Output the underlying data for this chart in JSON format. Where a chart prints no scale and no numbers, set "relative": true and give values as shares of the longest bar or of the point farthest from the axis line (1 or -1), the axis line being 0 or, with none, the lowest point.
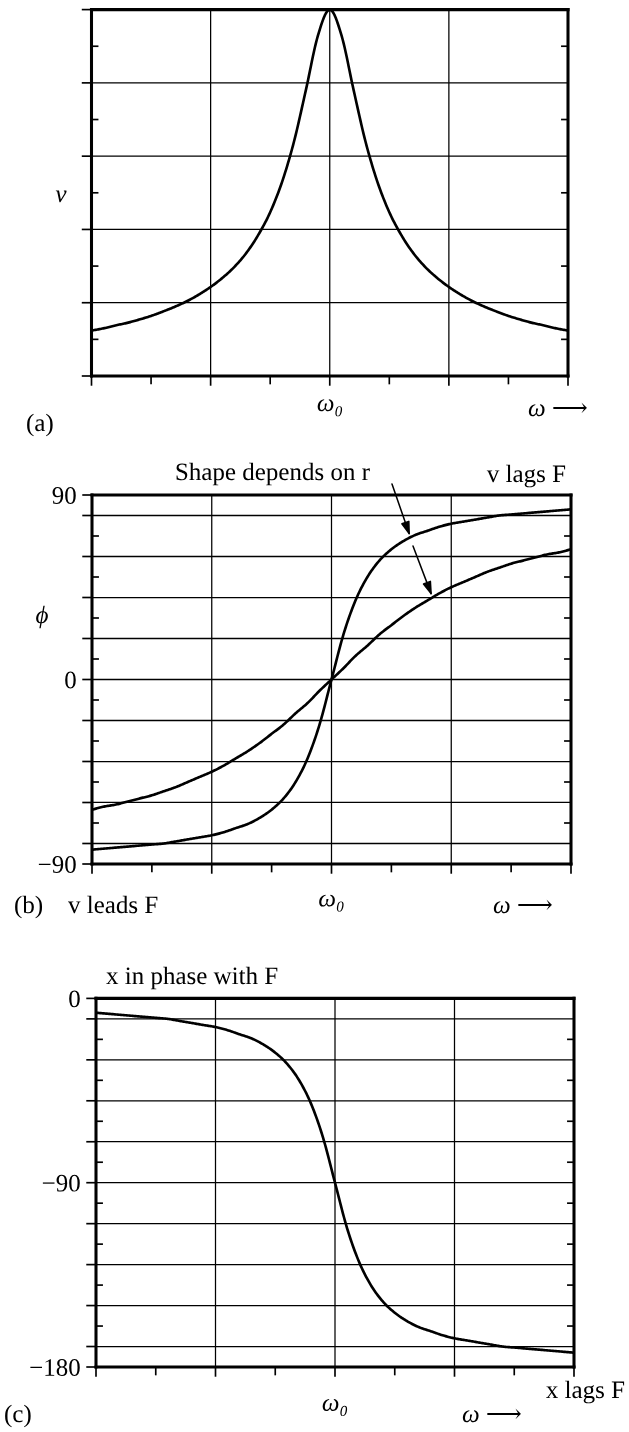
{
  "chart_data": [
    {
      "type": "line",
      "title": "(a)",
      "xlabel": "ω ⟶",
      "ylabel": "v",
      "relative": true,
      "categories": [
        null,
        null,
        null,
        null,
        null,
        null,
        null,
        null,
        null,
        null,
        null,
        null,
        null,
        null,
        null,
        null,
        null,
        null,
        null,
        null,
        null,
        null,
        null,
        null,
        null,
        null,
        null,
        null,
        null,
        null,
        null,
        null,
        null,
        null,
        null,
        null,
        null,
        null,
        null,
        null,
        null
      ],
      "series": [
        {
          "color": "#000000",
          "values": [
            0.124,
            0.13,
            0.138,
            0.145,
            0.154,
            0.164,
            0.176,
            0.189,
            0.204,
            0.222,
            0.243,
            0.268,
            0.298,
            0.336,
            0.385,
            0.447,
            0.53,
            0.64,
            0.781,
            0.928,
            1,
            0.928,
            0.781,
            0.64,
            0.53,
            0.447,
            0.385,
            0.336,
            0.298,
            0.268,
            0.243,
            0.222,
            0.204,
            0.189,
            0.176,
            0.164,
            0.154,
            0.145,
            0.138,
            0.13,
            0.124
          ]
        }
      ],
      "grid": true,
      "annotations": [
        "ω₀"
      ]
    },
    {
      "type": "line",
      "title": "(b)",
      "xlabel": "ω ⟶",
      "ylabel": "ϕ",
      "categories": [
        null,
        null,
        null,
        null,
        null,
        null,
        null,
        null,
        null,
        null,
        null,
        null,
        null,
        null,
        null,
        null,
        null,
        null,
        null,
        null,
        "ω₀",
        null,
        null,
        null,
        null,
        null,
        null,
        null,
        null,
        null,
        null,
        null,
        null,
        null,
        null,
        null,
        null,
        null,
        null,
        null,
        null
      ],
      "series": [
        {
          "color": "#000000",
          "values": [
            -83,
            -82.5,
            -82,
            -81.5,
            -81,
            -80.5,
            -80,
            -79,
            -78,
            -77,
            -76,
            -74.5,
            -72.5,
            -70.5,
            -67.5,
            -63.5,
            -58,
            -50,
            -38.5,
            -22,
            0,
            22,
            38.5,
            50,
            58,
            63.5,
            67.5,
            70.5,
            72.5,
            74.5,
            76,
            77,
            78,
            79,
            80,
            80.5,
            81,
            81.5,
            82,
            82.5,
            83
          ]
        },
        {
          "color": "#000000",
          "values": [
            -63.5,
            -62,
            -61,
            -59.5,
            -58,
            -56.5,
            -54.5,
            -52.5,
            -50,
            -47.5,
            -45,
            -42,
            -38.5,
            -35,
            -31,
            -26.5,
            -22,
            -16.5,
            -11.5,
            -5.5,
            0,
            5.5,
            11.5,
            16.5,
            22,
            26.5,
            31,
            35,
            38.5,
            42,
            45,
            47.5,
            50,
            52.5,
            54.5,
            56.5,
            58,
            59.5,
            61,
            62,
            63.5
          ]
        }
      ],
      "ylim": [
        -90,
        90
      ],
      "yticks": [
        {
          "value": 90,
          "label": "90"
        },
        {
          "value": 80,
          "label": null
        },
        {
          "value": 60,
          "label": null
        },
        {
          "value": 40,
          "label": null
        },
        {
          "value": 20,
          "label": null
        },
        {
          "value": 0,
          "label": "0"
        },
        {
          "value": -20,
          "label": null
        },
        {
          "value": -40,
          "label": null
        },
        {
          "value": -60,
          "label": null
        },
        {
          "value": -80,
          "label": null
        },
        {
          "value": -90,
          "label": "−90"
        }
      ],
      "grid": true,
      "annotations": [
        "Shape depends on r",
        "v lags F",
        "v leads F"
      ]
    },
    {
      "type": "line",
      "title": "(c)",
      "xlabel": "ω ⟶",
      "categories": [
        null,
        null,
        null,
        null,
        null,
        null,
        null,
        null,
        null,
        null,
        null,
        null,
        null,
        null,
        null,
        null,
        null,
        null,
        null,
        null,
        "ω₀",
        null,
        null,
        null,
        null,
        null,
        null,
        null,
        null,
        null,
        null,
        null,
        null,
        null,
        null,
        null,
        null,
        null,
        null,
        null,
        null
      ],
      "series": [
        {
          "color": "#000000",
          "values": [
            -7,
            -7.5,
            -8,
            -8.5,
            -9,
            -9.5,
            -10,
            -11,
            -12,
            -13,
            -14,
            -15.5,
            -17.5,
            -19.5,
            -22.5,
            -26.5,
            -32,
            -40,
            -51.5,
            -68,
            -90,
            -112,
            -128.5,
            -140,
            -148,
            -153.5,
            -157.5,
            -160.5,
            -162.5,
            -164.5,
            -166,
            -167,
            -168,
            -169,
            -170,
            -170.5,
            -171,
            -171.5,
            -172,
            -172.5,
            -173
          ]
        }
      ],
      "ylim": [
        -180,
        0
      ],
      "yticks": [
        {
          "value": 0,
          "label": "0"
        },
        {
          "value": -10,
          "label": null
        },
        {
          "value": -30,
          "label": null
        },
        {
          "value": -50,
          "label": null
        },
        {
          "value": -70,
          "label": null
        },
        {
          "value": -90,
          "label": "−90"
        },
        {
          "value": -110,
          "label": null
        },
        {
          "value": -130,
          "label": null
        },
        {
          "value": -150,
          "label": null
        },
        {
          "value": -170,
          "label": null
        },
        {
          "value": -180,
          "label": "−180"
        }
      ],
      "grid": true,
      "annotations": [
        "x in phase with F",
        "x lags F"
      ]
    }
  ]
}
